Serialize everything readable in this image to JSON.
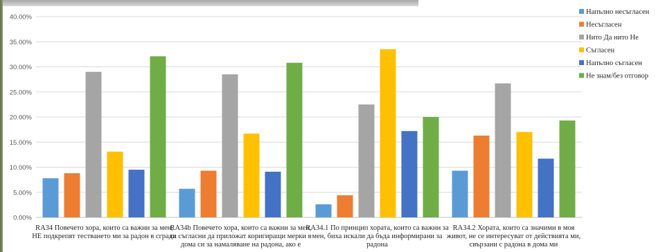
{
  "chart_data": {
    "type": "bar",
    "title": "",
    "xlabel": "",
    "ylabel": "",
    "ylim": [
      0,
      40
    ],
    "ytick_step": 5,
    "ytick_labels": [
      "0.00%",
      "5.00%",
      "10.00%",
      "15.00%",
      "20.00%",
      "25.00%",
      "30.00%",
      "35.00%",
      "40.00%"
    ],
    "grid": true,
    "legend_position": "right",
    "categories": [
      {
        "id": "ra34",
        "lines": [
          "RA34 Повечето хора, които са важни за мен,",
          "НЕ подкрепят тестването ми за радон в сгради"
        ]
      },
      {
        "id": "ra34b",
        "lines": [
          "RA34b Повечето хора, които са важни за мен,",
          "са съгласни да приложат коригиращи мерки в",
          "дома си за намаляване на радона, ако е"
        ]
      },
      {
        "id": "ra341",
        "lines": [
          "RA34.1 По принцип хората, които са важни за",
          "мен, биха искали да бъда информирани за",
          "радона"
        ]
      },
      {
        "id": "ra342",
        "lines": [
          "RA34.2 Хората, които са значими в моя",
          "живот, не се интересуват от действията ми,",
          "свързани с радона в дома ми"
        ]
      }
    ],
    "series": [
      {
        "name": "Напълно несъгласен",
        "color": "#5b9bd5",
        "values": [
          7.8,
          5.7,
          2.6,
          9.3
        ]
      },
      {
        "name": "Несъгласен",
        "color": "#ed7d31",
        "values": [
          8.8,
          9.3,
          4.4,
          16.3
        ]
      },
      {
        "name": "Нито Да нито Не",
        "color": "#a5a5a5",
        "values": [
          29.0,
          28.5,
          22.5,
          26.7
        ]
      },
      {
        "name": "Съгласен",
        "color": "#ffc000",
        "values": [
          13.1,
          16.7,
          33.5,
          17.0
        ]
      },
      {
        "name": "Напълно съгласен",
        "color": "#4472c4",
        "values": [
          9.5,
          9.1,
          17.2,
          11.7
        ]
      },
      {
        "name": "Не знам/без отговор",
        "color": "#70ad47",
        "values": [
          32.1,
          30.8,
          20.0,
          19.3
        ]
      }
    ]
  }
}
